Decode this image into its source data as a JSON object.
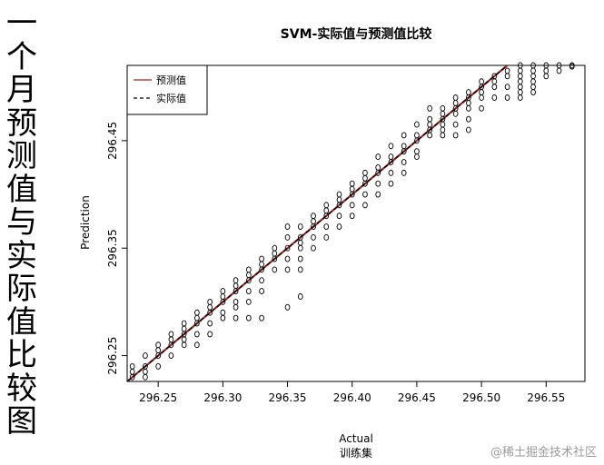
{
  "side_title": "一个月预测值与实际值比较图",
  "watermark": "@稀土掘金技术社区",
  "chart_data": {
    "type": "scatter",
    "title": "SVM-实际值与预测值比较",
    "xlabel": "Actual",
    "subtitle": "训练集",
    "ylabel": "Prediction",
    "xlim": [
      296.226,
      296.58
    ],
    "ylim": [
      296.226,
      296.52
    ],
    "x_ticks": [
      296.25,
      296.3,
      296.35,
      296.4,
      296.45,
      296.5,
      296.55
    ],
    "x_tick_labels": [
      "296.25",
      "296.30",
      "296.35",
      "296.40",
      "296.45",
      "296.50",
      "296.55"
    ],
    "y_ticks": [
      296.25,
      296.35,
      296.45
    ],
    "y_tick_labels": [
      "296.25",
      "296.35",
      "296.45"
    ],
    "legend": {
      "position": "top-left",
      "entries": [
        {
          "label": "预测值",
          "style": "solid",
          "color": "#8b2f2f"
        },
        {
          "label": "实际值",
          "style": "dashed",
          "color": "#000000"
        }
      ]
    },
    "lines": [
      {
        "name": "预测值",
        "style": "solid",
        "color": "#8b2f2f",
        "x": [
          296.226,
          296.56
        ],
        "y": [
          296.226,
          296.56
        ]
      },
      {
        "name": "实际值",
        "style": "dashed",
        "color": "#000000",
        "x": [
          296.226,
          296.56
        ],
        "y": [
          296.226,
          296.56
        ]
      }
    ],
    "points": [
      [
        296.23,
        296.24
      ],
      [
        296.23,
        296.235
      ],
      [
        296.23,
        296.23
      ],
      [
        296.24,
        296.25
      ],
      [
        296.24,
        296.24
      ],
      [
        296.24,
        296.235
      ],
      [
        296.24,
        296.23
      ],
      [
        296.25,
        296.26
      ],
      [
        296.25,
        296.255
      ],
      [
        296.25,
        296.25
      ],
      [
        296.25,
        296.24
      ],
      [
        296.26,
        296.27
      ],
      [
        296.26,
        296.265
      ],
      [
        296.26,
        296.26
      ],
      [
        296.26,
        296.25
      ],
      [
        296.27,
        296.28
      ],
      [
        296.27,
        296.275
      ],
      [
        296.27,
        296.27
      ],
      [
        296.27,
        296.265
      ],
      [
        296.27,
        296.26
      ],
      [
        296.28,
        296.29
      ],
      [
        296.28,
        296.285
      ],
      [
        296.28,
        296.28
      ],
      [
        296.28,
        296.27
      ],
      [
        296.28,
        296.26
      ],
      [
        296.29,
        296.3
      ],
      [
        296.29,
        296.295
      ],
      [
        296.29,
        296.29
      ],
      [
        296.29,
        296.28
      ],
      [
        296.29,
        296.27
      ],
      [
        296.3,
        296.31
      ],
      [
        296.3,
        296.305
      ],
      [
        296.3,
        296.3
      ],
      [
        296.3,
        296.29
      ],
      [
        296.3,
        296.285
      ],
      [
        296.31,
        296.32
      ],
      [
        296.31,
        296.315
      ],
      [
        296.31,
        296.31
      ],
      [
        296.31,
        296.3
      ],
      [
        296.31,
        296.295
      ],
      [
        296.31,
        296.285
      ],
      [
        296.32,
        296.33
      ],
      [
        296.32,
        296.325
      ],
      [
        296.32,
        296.32
      ],
      [
        296.32,
        296.31
      ],
      [
        296.32,
        296.3
      ],
      [
        296.32,
        296.285
      ],
      [
        296.33,
        296.34
      ],
      [
        296.33,
        296.335
      ],
      [
        296.33,
        296.33
      ],
      [
        296.33,
        296.32
      ],
      [
        296.33,
        296.31
      ],
      [
        296.33,
        296.285
      ],
      [
        296.34,
        296.35
      ],
      [
        296.34,
        296.345
      ],
      [
        296.34,
        296.34
      ],
      [
        296.34,
        296.33
      ],
      [
        296.35,
        296.37
      ],
      [
        296.35,
        296.36
      ],
      [
        296.35,
        296.35
      ],
      [
        296.35,
        296.34
      ],
      [
        296.35,
        296.33
      ],
      [
        296.35,
        296.295
      ],
      [
        296.36,
        296.37
      ],
      [
        296.36,
        296.36
      ],
      [
        296.36,
        296.355
      ],
      [
        296.36,
        296.35
      ],
      [
        296.36,
        296.34
      ],
      [
        296.36,
        296.33
      ],
      [
        296.36,
        296.305
      ],
      [
        296.37,
        296.38
      ],
      [
        296.37,
        296.375
      ],
      [
        296.37,
        296.37
      ],
      [
        296.37,
        296.36
      ],
      [
        296.37,
        296.35
      ],
      [
        296.38,
        296.39
      ],
      [
        296.38,
        296.385
      ],
      [
        296.38,
        296.38
      ],
      [
        296.38,
        296.37
      ],
      [
        296.38,
        296.36
      ],
      [
        296.39,
        296.4
      ],
      [
        296.39,
        296.395
      ],
      [
        296.39,
        296.39
      ],
      [
        296.39,
        296.38
      ],
      [
        296.39,
        296.37
      ],
      [
        296.4,
        296.41
      ],
      [
        296.4,
        296.405
      ],
      [
        296.4,
        296.4
      ],
      [
        296.4,
        296.39
      ],
      [
        296.4,
        296.38
      ],
      [
        296.41,
        296.42
      ],
      [
        296.41,
        296.415
      ],
      [
        296.41,
        296.41
      ],
      [
        296.41,
        296.4
      ],
      [
        296.41,
        296.39
      ],
      [
        296.42,
        296.435
      ],
      [
        296.42,
        296.425
      ],
      [
        296.42,
        296.42
      ],
      [
        296.42,
        296.41
      ],
      [
        296.42,
        296.4
      ],
      [
        296.43,
        296.445
      ],
      [
        296.43,
        296.435
      ],
      [
        296.43,
        296.43
      ],
      [
        296.43,
        296.42
      ],
      [
        296.43,
        296.41
      ],
      [
        296.44,
        296.455
      ],
      [
        296.44,
        296.445
      ],
      [
        296.44,
        296.44
      ],
      [
        296.44,
        296.43
      ],
      [
        296.44,
        296.42
      ],
      [
        296.45,
        296.465
      ],
      [
        296.45,
        296.455
      ],
      [
        296.45,
        296.45
      ],
      [
        296.45,
        296.44
      ],
      [
        296.45,
        296.435
      ],
      [
        296.46,
        296.48
      ],
      [
        296.46,
        296.47
      ],
      [
        296.46,
        296.465
      ],
      [
        296.46,
        296.46
      ],
      [
        296.46,
        296.455
      ],
      [
        296.47,
        296.48
      ],
      [
        296.47,
        296.475
      ],
      [
        296.47,
        296.47
      ],
      [
        296.47,
        296.465
      ],
      [
        296.47,
        296.46
      ],
      [
        296.47,
        296.455
      ],
      [
        296.48,
        296.49
      ],
      [
        296.48,
        296.485
      ],
      [
        296.48,
        296.48
      ],
      [
        296.48,
        296.475
      ],
      [
        296.48,
        296.465
      ],
      [
        296.48,
        296.455
      ],
      [
        296.49,
        296.495
      ],
      [
        296.49,
        296.49
      ],
      [
        296.49,
        296.485
      ],
      [
        296.49,
        296.48
      ],
      [
        296.49,
        296.47
      ],
      [
        296.49,
        296.46
      ],
      [
        296.5,
        296.505
      ],
      [
        296.5,
        296.5
      ],
      [
        296.5,
        296.495
      ],
      [
        296.5,
        296.49
      ],
      [
        296.5,
        296.48
      ],
      [
        296.51,
        296.51
      ],
      [
        296.51,
        296.505
      ],
      [
        296.51,
        296.5
      ],
      [
        296.51,
        296.49
      ],
      [
        296.52,
        296.515
      ],
      [
        296.52,
        296.51
      ],
      [
        296.52,
        296.5
      ],
      [
        296.52,
        296.49
      ],
      [
        296.53,
        296.52
      ],
      [
        296.53,
        296.515
      ],
      [
        296.53,
        296.51
      ],
      [
        296.53,
        296.505
      ],
      [
        296.53,
        296.5
      ],
      [
        296.53,
        296.495
      ],
      [
        296.53,
        296.49
      ],
      [
        296.54,
        296.52
      ],
      [
        296.54,
        296.515
      ],
      [
        296.54,
        296.51
      ],
      [
        296.54,
        296.505
      ],
      [
        296.54,
        296.5
      ],
      [
        296.54,
        296.495
      ],
      [
        296.55,
        296.52
      ],
      [
        296.55,
        296.515
      ],
      [
        296.55,
        296.51
      ],
      [
        296.56,
        296.52
      ],
      [
        296.56,
        296.515
      ],
      [
        296.57,
        296.52
      ],
      [
        296.57,
        296.519
      ]
    ]
  }
}
